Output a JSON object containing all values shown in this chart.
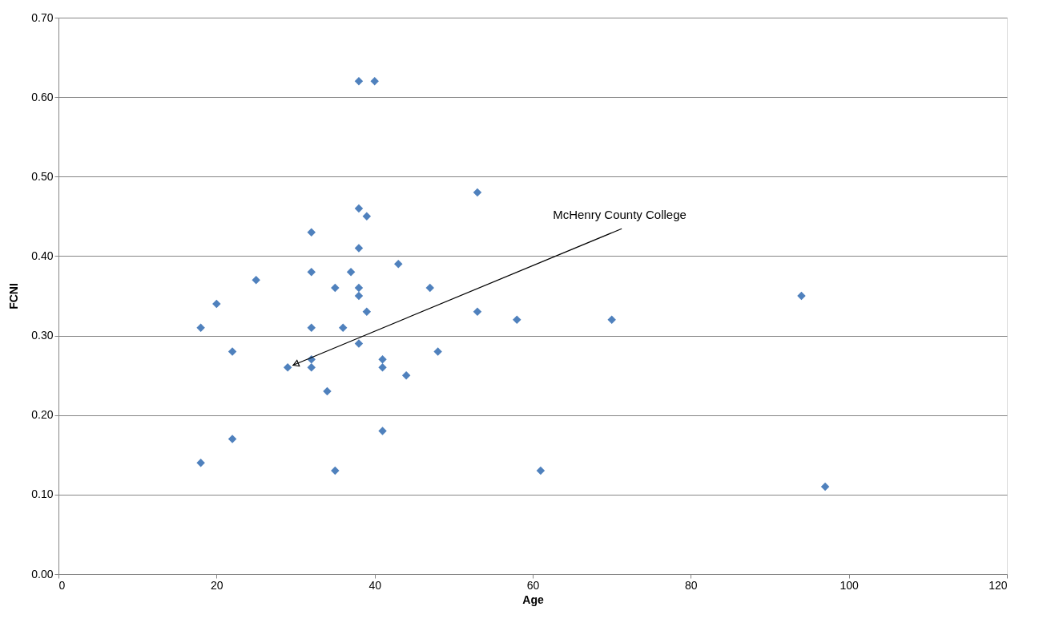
{
  "chart_data": {
    "type": "scatter",
    "xlabel": "Age",
    "ylabel": "FCNI",
    "x": [
      18,
      18,
      20,
      22,
      22,
      25,
      29,
      32,
      32,
      32,
      32,
      32,
      34,
      35,
      35,
      36,
      37,
      38,
      38,
      38,
      38,
      38,
      38,
      39,
      39,
      40,
      41,
      41,
      41,
      43,
      44,
      47,
      48,
      53,
      53,
      58,
      61,
      70,
      94,
      97
    ],
    "series": [
      {
        "color": "#4f81bd",
        "values": [
          0.14,
          0.31,
          0.34,
          0.28,
          0.17,
          0.37,
          0.26,
          0.43,
          0.38,
          0.31,
          0.27,
          0.26,
          0.23,
          0.36,
          0.13,
          0.31,
          0.38,
          0.62,
          0.46,
          0.41,
          0.36,
          0.35,
          0.29,
          0.45,
          0.33,
          0.62,
          0.27,
          0.26,
          0.18,
          0.39,
          0.25,
          0.36,
          0.28,
          0.48,
          0.33,
          0.32,
          0.13,
          0.32,
          0.35,
          0.11
        ]
      }
    ],
    "annotations": [
      {
        "text": "McHenry County College",
        "x": 29,
        "y": 0.26
      }
    ],
    "xlim": [
      0,
      120
    ],
    "xticks": [
      0,
      20,
      40,
      60,
      80,
      100,
      120
    ],
    "ylim": [
      0,
      0.7
    ],
    "yticks": [
      {
        "value": 0,
        "label": "0.00"
      },
      {
        "value": 0.1,
        "label": "0.10"
      },
      {
        "value": 0.2,
        "label": "0.20"
      },
      {
        "value": 0.3,
        "label": "0.30"
      },
      {
        "value": 0.4,
        "label": "0.40"
      },
      {
        "value": 0.5,
        "label": "0.50"
      },
      {
        "value": 0.6,
        "label": "0.60"
      },
      {
        "value": 0.7,
        "label": "0.70"
      }
    ],
    "grid": "y",
    "marker": "diamond"
  }
}
